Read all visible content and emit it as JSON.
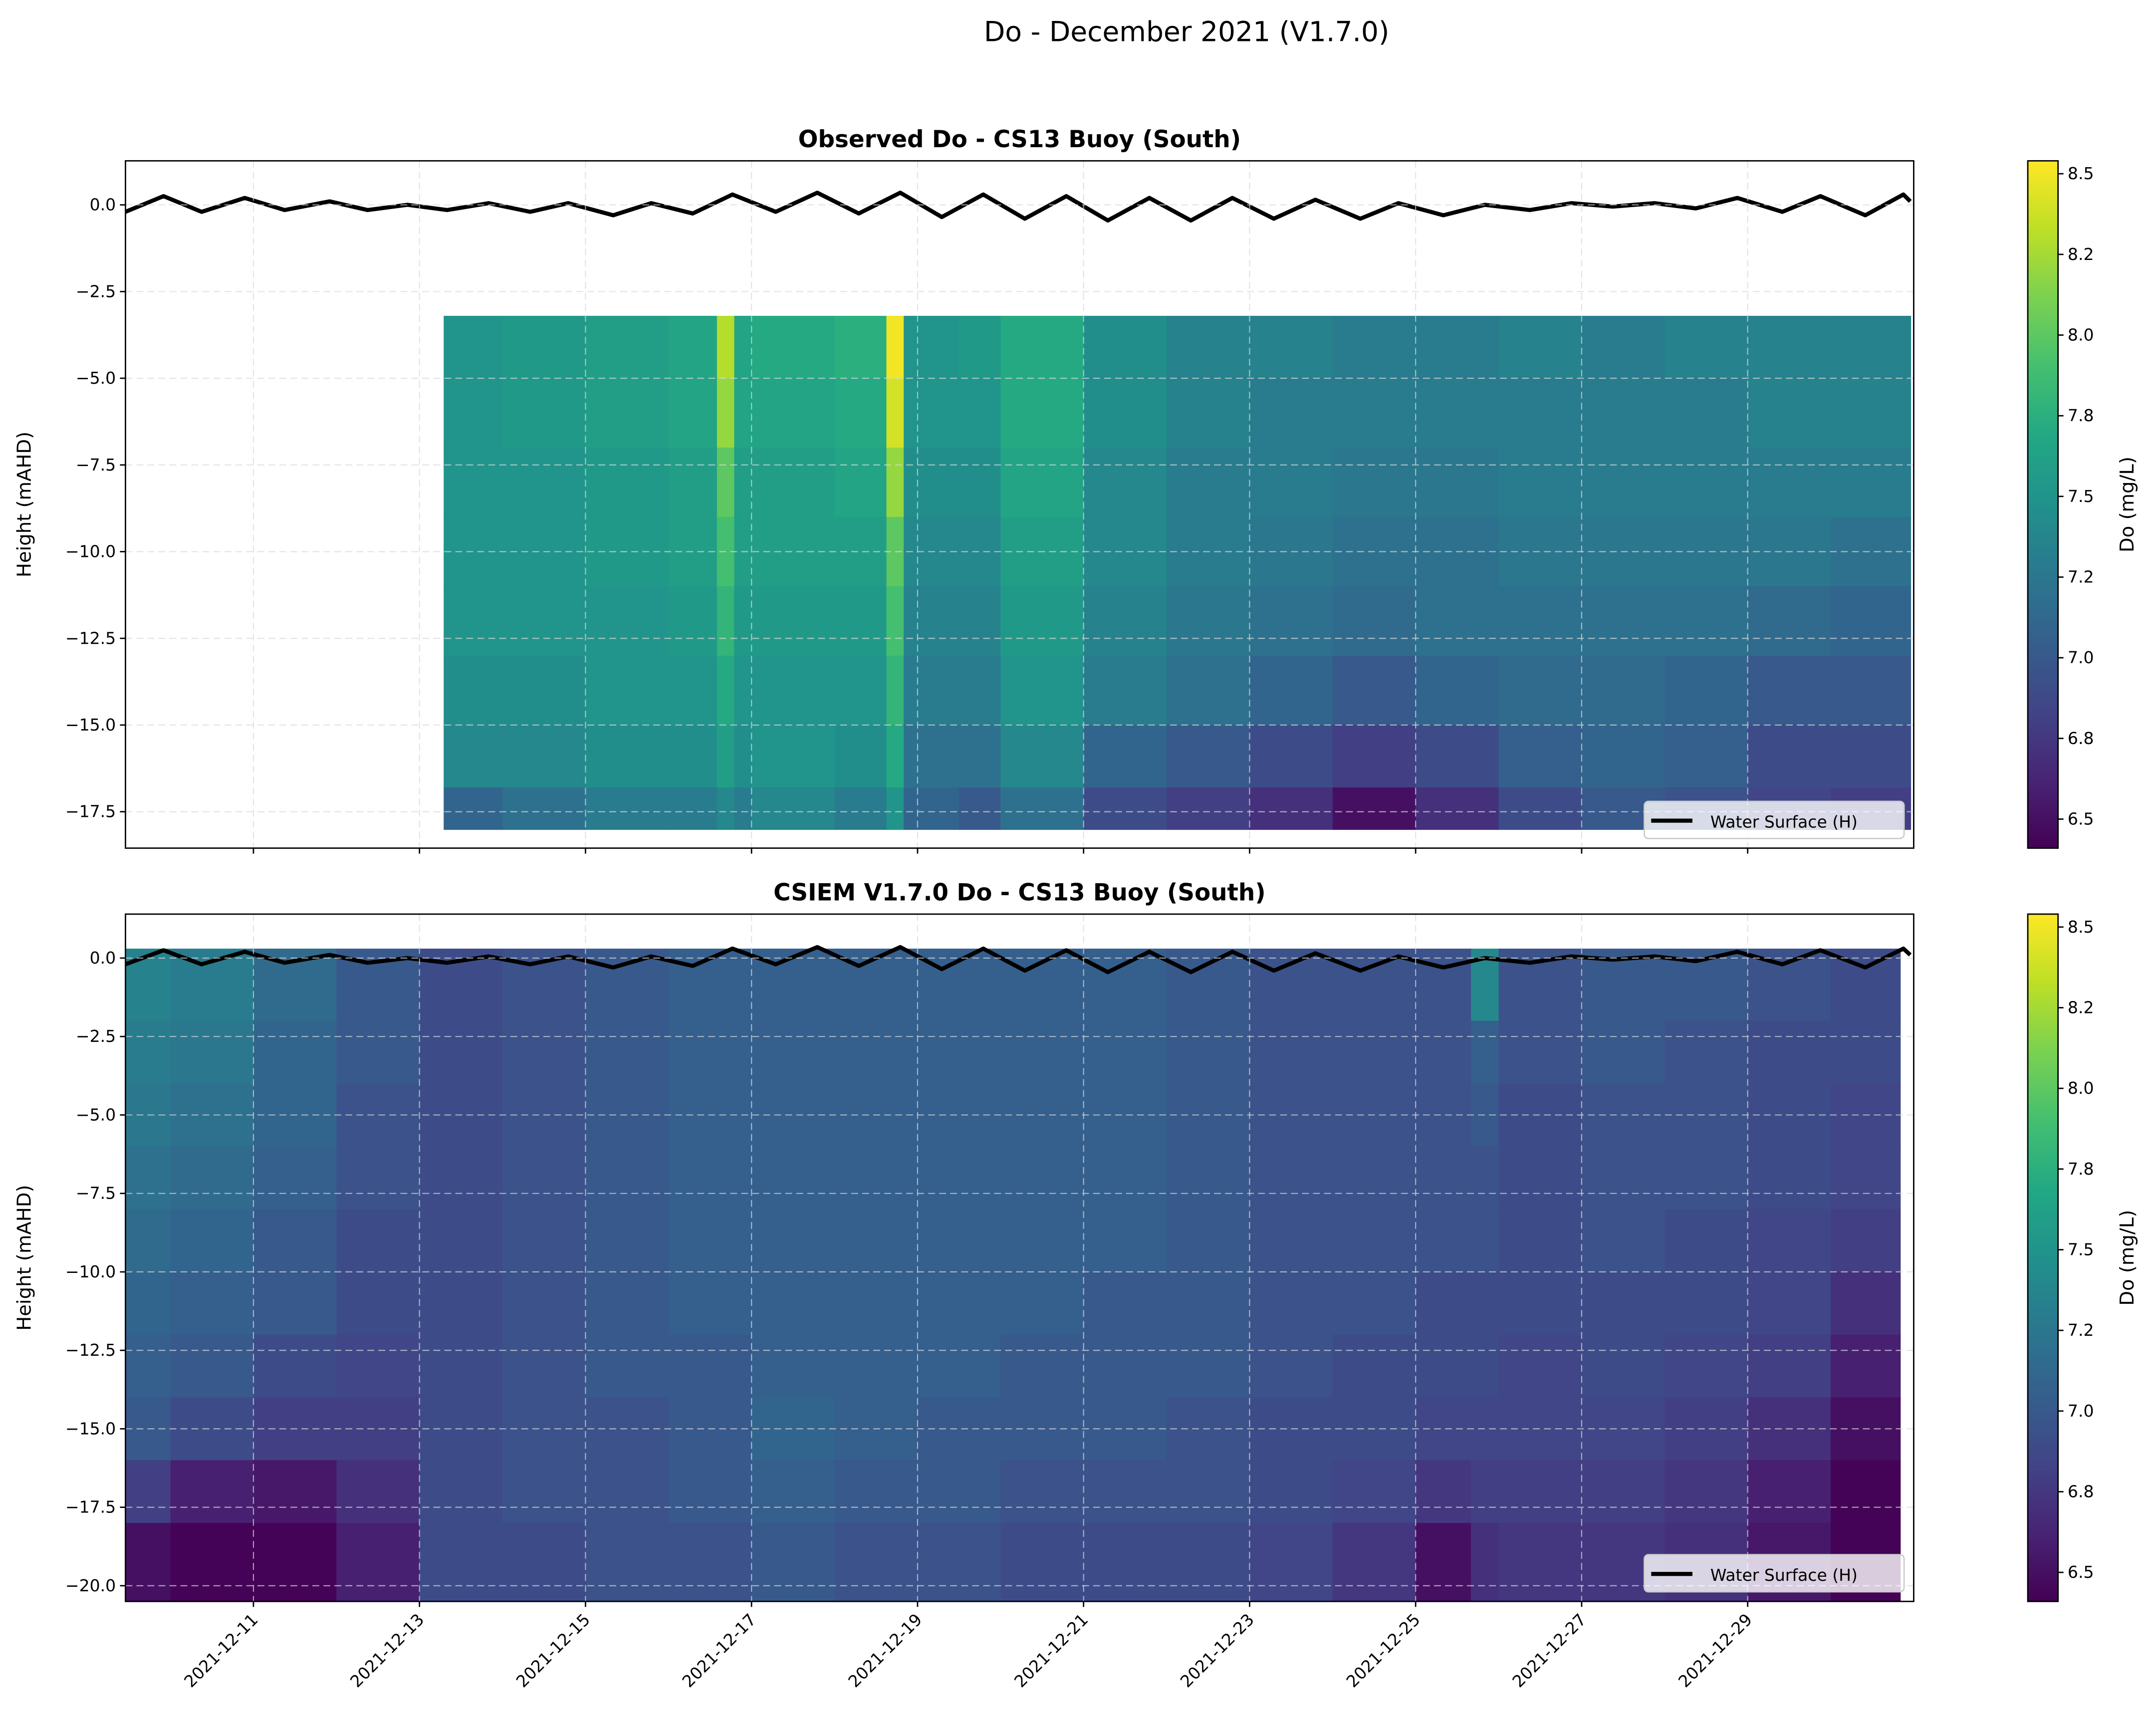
{
  "figure": {
    "title": "Do - December 2021 (V1.7.0)"
  },
  "colors": {
    "water_surface": "#000000",
    "grid": "#d9d9d9",
    "colormap": "viridis"
  },
  "chart_data": [
    {
      "type": "heatmap",
      "title": "Observed Do - CS13 Buoy (South)",
      "xlabel": "",
      "ylabel": "Height (mAHD)",
      "xlim": [
        "2021-12-09 11:00",
        "2021-12-31 00:00"
      ],
      "ylim": [
        -18.55,
        1.27
      ],
      "yticks": [
        0,
        -2.5,
        -5,
        -7.5,
        -10,
        -12.5,
        -15,
        -17.5
      ],
      "ytick_labels": [
        "0.0",
        "−2.5",
        "−5.0",
        "−7.5",
        "−10.0",
        "−12.5",
        "−15.0",
        "−17.5"
      ],
      "xticks": [
        "2021-12-11",
        "2021-12-13",
        "2021-12-15",
        "2021-12-17",
        "2021-12-19",
        "2021-12-21",
        "2021-12-23",
        "2021-12-25",
        "2021-12-27",
        "2021-12-29"
      ],
      "grid": true,
      "colorbar": {
        "label": "Do (mg/L)",
        "range": [
          6.41,
          8.54
        ],
        "ticks": [
          6.5,
          6.75,
          7.0,
          7.25,
          7.5,
          7.75,
          8.0,
          8.25,
          8.5
        ],
        "tick_labels": [
          "6.5",
          "6.8",
          "7.0",
          "7.2",
          "7.5",
          "7.8",
          "8.0",
          "8.2",
          "8.5"
        ]
      },
      "legend": {
        "entry": "Water Surface (H)",
        "placement": "lower right"
      },
      "depth_edges": [
        -3.2,
        -5,
        -7,
        -9,
        -11,
        -13,
        -15,
        -16.8,
        -18.0
      ],
      "x_end": "2021-12-30 23:00",
      "columns": [
        {
          "x": "2021-12-13 07:00",
          "values": [
            7.5,
            7.5,
            7.5,
            7.5,
            7.5,
            7.45,
            7.4,
            7.1
          ]
        },
        {
          "x": "2021-12-14 00:00",
          "values": [
            7.55,
            7.55,
            7.5,
            7.5,
            7.5,
            7.45,
            7.4,
            7.2
          ]
        },
        {
          "x": "2021-12-15 00:00",
          "values": [
            7.6,
            7.6,
            7.55,
            7.55,
            7.5,
            7.5,
            7.45,
            7.3
          ]
        },
        {
          "x": "2021-12-16 00:00",
          "values": [
            7.65,
            7.65,
            7.6,
            7.6,
            7.55,
            7.5,
            7.45,
            7.3
          ]
        },
        {
          "x": "2021-12-16 14:00",
          "values": [
            8.3,
            8.2,
            8.0,
            7.9,
            7.8,
            7.7,
            7.6,
            7.4
          ]
        },
        {
          "x": "2021-12-16 19:00",
          "values": [
            7.65,
            7.65,
            7.6,
            7.6,
            7.55,
            7.5,
            7.45,
            7.3
          ]
        },
        {
          "x": "2021-12-17 00:00",
          "values": [
            7.7,
            7.65,
            7.6,
            7.6,
            7.55,
            7.5,
            7.5,
            7.4
          ]
        },
        {
          "x": "2021-12-18 00:00",
          "values": [
            7.75,
            7.7,
            7.65,
            7.6,
            7.55,
            7.5,
            7.45,
            7.3
          ]
        },
        {
          "x": "2021-12-18 15:00",
          "values": [
            8.5,
            8.4,
            8.2,
            8.0,
            7.9,
            7.8,
            7.7,
            7.5
          ]
        },
        {
          "x": "2021-12-18 20:00",
          "values": [
            7.5,
            7.5,
            7.45,
            7.4,
            7.35,
            7.3,
            7.2,
            7.1
          ]
        },
        {
          "x": "2021-12-19 12:00",
          "values": [
            7.55,
            7.5,
            7.45,
            7.4,
            7.35,
            7.3,
            7.2,
            7.0
          ]
        },
        {
          "x": "2021-12-20 00:00",
          "values": [
            7.7,
            7.7,
            7.65,
            7.6,
            7.55,
            7.5,
            7.4,
            7.2
          ]
        },
        {
          "x": "2021-12-21 00:00",
          "values": [
            7.45,
            7.45,
            7.4,
            7.4,
            7.35,
            7.3,
            7.1,
            6.9
          ]
        },
        {
          "x": "2021-12-22 00:00",
          "values": [
            7.35,
            7.35,
            7.3,
            7.3,
            7.25,
            7.2,
            7.0,
            6.8
          ]
        },
        {
          "x": "2021-12-23 00:00",
          "values": [
            7.35,
            7.3,
            7.3,
            7.25,
            7.2,
            7.1,
            6.9,
            6.7
          ]
        },
        {
          "x": "2021-12-24 00:00",
          "values": [
            7.3,
            7.3,
            7.25,
            7.2,
            7.15,
            7.0,
            6.8,
            6.5
          ]
        },
        {
          "x": "2021-12-25 00:00",
          "values": [
            7.3,
            7.3,
            7.25,
            7.2,
            7.2,
            7.1,
            6.9,
            6.7
          ]
        },
        {
          "x": "2021-12-26 00:00",
          "values": [
            7.35,
            7.3,
            7.3,
            7.25,
            7.2,
            7.15,
            7.05,
            6.9
          ]
        },
        {
          "x": "2021-12-27 00:00",
          "values": [
            7.3,
            7.3,
            7.3,
            7.25,
            7.2,
            7.15,
            7.1,
            7.0
          ]
        },
        {
          "x": "2021-12-28 00:00",
          "values": [
            7.35,
            7.3,
            7.3,
            7.25,
            7.2,
            7.1,
            7.05,
            6.95
          ]
        },
        {
          "x": "2021-12-29 00:00",
          "values": [
            7.35,
            7.35,
            7.3,
            7.25,
            7.15,
            7.0,
            6.9,
            6.85
          ]
        },
        {
          "x": "2021-12-30 00:00",
          "values": [
            7.35,
            7.35,
            7.3,
            7.2,
            7.1,
            7.0,
            6.9,
            6.8
          ]
        }
      ]
    },
    {
      "type": "heatmap",
      "title": "CSIEM V1.7.0 Do - CS13 Buoy (South)",
      "xlabel": "",
      "ylabel": "Height (mAHD)",
      "xlim": [
        "2021-12-09 11:00",
        "2021-12-31 00:00"
      ],
      "ylim": [
        -20.5,
        1.4
      ],
      "yticks": [
        0,
        -2.5,
        -5,
        -7.5,
        -10,
        -12.5,
        -15,
        -17.5,
        -20
      ],
      "ytick_labels": [
        "0.0",
        "−2.5",
        "−5.0",
        "−7.5",
        "−10.0",
        "−12.5",
        "−15.0",
        "−17.5",
        "−20.0"
      ],
      "xticks": [
        "2021-12-11",
        "2021-12-13",
        "2021-12-15",
        "2021-12-17",
        "2021-12-19",
        "2021-12-21",
        "2021-12-23",
        "2021-12-25",
        "2021-12-27",
        "2021-12-29"
      ],
      "xtick_labels": [
        "2021-12-11",
        "2021-12-13",
        "2021-12-15",
        "2021-12-17",
        "2021-12-19",
        "2021-12-21",
        "2021-12-23",
        "2021-12-25",
        "2021-12-27",
        "2021-12-29"
      ],
      "grid": true,
      "colorbar": {
        "label": "Do (mg/L)",
        "range": [
          6.41,
          8.54
        ],
        "ticks": [
          6.5,
          6.75,
          7.0,
          7.25,
          7.5,
          7.75,
          8.0,
          8.25,
          8.5
        ],
        "tick_labels": [
          "6.5",
          "6.8",
          "7.0",
          "7.2",
          "7.5",
          "7.8",
          "8.0",
          "8.2",
          "8.5"
        ]
      },
      "legend": {
        "entry": "Water Surface (H)",
        "placement": "lower right"
      },
      "depth_edges": [
        0.3,
        -2,
        -4,
        -6,
        -8,
        -10,
        -12,
        -14,
        -16,
        -18,
        -20.5
      ],
      "x_end": "2021-12-30 20:00",
      "columns": [
        {
          "x": "2021-12-09 11:00",
          "values": [
            7.35,
            7.3,
            7.25,
            7.2,
            7.15,
            7.1,
            7.05,
            7.0,
            6.8,
            6.5
          ]
        },
        {
          "x": "2021-12-10 00:00",
          "values": [
            7.3,
            7.25,
            7.2,
            7.15,
            7.1,
            7.05,
            7.0,
            6.9,
            6.6,
            6.42
          ]
        },
        {
          "x": "2021-12-11 00:00",
          "values": [
            7.15,
            7.1,
            7.1,
            7.05,
            7.0,
            7.0,
            6.9,
            6.8,
            6.55,
            6.42
          ]
        },
        {
          "x": "2021-12-12 00:00",
          "values": [
            7.0,
            7.0,
            6.95,
            6.95,
            6.9,
            6.9,
            6.85,
            6.8,
            6.7,
            6.6
          ]
        },
        {
          "x": "2021-12-13 00:00",
          "values": [
            6.9,
            6.9,
            6.9,
            6.9,
            6.9,
            6.9,
            6.9,
            6.9,
            6.9,
            6.9
          ]
        },
        {
          "x": "2021-12-14 00:00",
          "values": [
            6.95,
            6.95,
            6.95,
            6.95,
            6.95,
            6.95,
            6.95,
            6.95,
            6.95,
            6.9
          ]
        },
        {
          "x": "2021-12-15 00:00",
          "values": [
            7.0,
            7.0,
            7.0,
            7.0,
            7.0,
            7.0,
            7.0,
            6.95,
            6.95,
            6.95
          ]
        },
        {
          "x": "2021-12-16 00:00",
          "values": [
            7.05,
            7.05,
            7.05,
            7.05,
            7.05,
            7.05,
            7.0,
            7.0,
            7.0,
            6.95
          ]
        },
        {
          "x": "2021-12-17 00:00",
          "values": [
            7.05,
            7.05,
            7.05,
            7.05,
            7.05,
            7.05,
            7.05,
            7.1,
            7.05,
            7.0
          ]
        },
        {
          "x": "2021-12-18 00:00",
          "values": [
            7.05,
            7.05,
            7.05,
            7.05,
            7.05,
            7.05,
            7.05,
            7.05,
            7.0,
            6.95
          ]
        },
        {
          "x": "2021-12-19 00:00",
          "values": [
            7.05,
            7.05,
            7.05,
            7.05,
            7.05,
            7.05,
            7.05,
            7.0,
            7.0,
            6.95
          ]
        },
        {
          "x": "2021-12-20 00:00",
          "values": [
            7.05,
            7.05,
            7.05,
            7.05,
            7.05,
            7.05,
            7.0,
            7.0,
            6.95,
            6.9
          ]
        },
        {
          "x": "2021-12-21 00:00",
          "values": [
            7.05,
            7.05,
            7.05,
            7.05,
            7.05,
            7.0,
            7.0,
            7.0,
            6.95,
            6.9
          ]
        },
        {
          "x": "2021-12-22 00:00",
          "values": [
            7.0,
            7.0,
            7.0,
            7.0,
            7.0,
            7.0,
            7.0,
            6.95,
            6.95,
            6.9
          ]
        },
        {
          "x": "2021-12-23 00:00",
          "values": [
            6.95,
            6.95,
            6.95,
            6.95,
            6.95,
            6.95,
            6.95,
            6.9,
            6.9,
            6.85
          ]
        },
        {
          "x": "2021-12-24 00:00",
          "values": [
            6.95,
            6.95,
            6.95,
            6.95,
            6.95,
            6.95,
            6.9,
            6.9,
            6.85,
            6.75
          ]
        },
        {
          "x": "2021-12-25 00:00",
          "values": [
            6.95,
            6.95,
            6.95,
            6.95,
            6.95,
            6.9,
            6.9,
            6.85,
            6.75,
            6.5
          ]
        },
        {
          "x": "2021-12-25 16:00",
          "values": [
            7.4,
            7.05,
            7.0,
            6.95,
            6.95,
            6.9,
            6.9,
            6.85,
            6.8,
            6.7
          ]
        },
        {
          "x": "2021-12-26 00:00",
          "values": [
            6.95,
            6.95,
            6.9,
            6.9,
            6.9,
            6.9,
            6.85,
            6.85,
            6.8,
            6.75
          ]
        },
        {
          "x": "2021-12-27 00:00",
          "values": [
            7.0,
            7.0,
            6.95,
            6.95,
            6.95,
            6.9,
            6.9,
            6.85,
            6.8,
            6.75
          ]
        },
        {
          "x": "2021-12-28 00:00",
          "values": [
            7.0,
            6.95,
            6.95,
            6.95,
            6.9,
            6.9,
            6.85,
            6.8,
            6.75,
            6.7
          ]
        },
        {
          "x": "2021-12-29 00:00",
          "values": [
            6.95,
            6.9,
            6.9,
            6.9,
            6.85,
            6.85,
            6.8,
            6.7,
            6.6,
            6.55
          ]
        },
        {
          "x": "2021-12-30 00:00",
          "values": [
            6.9,
            6.9,
            6.85,
            6.85,
            6.8,
            6.7,
            6.6,
            6.5,
            6.42,
            6.42
          ]
        }
      ]
    }
  ],
  "water_surface": {
    "name": "Water Surface (H)",
    "points": [
      [
        "2021-12-09 11:00",
        -0.2
      ],
      [
        "2021-12-09 22:00",
        0.25
      ],
      [
        "2021-12-10 09:00",
        -0.2
      ],
      [
        "2021-12-10 21:30",
        0.2
      ],
      [
        "2021-12-11 09:00",
        -0.15
      ],
      [
        "2021-12-11 22:00",
        0.1
      ],
      [
        "2021-12-12 09:00",
        -0.15
      ],
      [
        "2021-12-12 20:30",
        0.0
      ],
      [
        "2021-12-13 08:00",
        -0.15
      ],
      [
        "2021-12-13 20:00",
        0.05
      ],
      [
        "2021-12-14 08:00",
        -0.2
      ],
      [
        "2021-12-14 19:00",
        0.05
      ],
      [
        "2021-12-15 08:00",
        -0.3
      ],
      [
        "2021-12-15 19:00",
        0.05
      ],
      [
        "2021-12-16 07:00",
        -0.25
      ],
      [
        "2021-12-16 18:30",
        0.3
      ],
      [
        "2021-12-17 07:00",
        -0.2
      ],
      [
        "2021-12-17 19:00",
        0.35
      ],
      [
        "2021-12-18 07:00",
        -0.25
      ],
      [
        "2021-12-18 19:00",
        0.35
      ],
      [
        "2021-12-19 07:00",
        -0.35
      ],
      [
        "2021-12-19 19:00",
        0.3
      ],
      [
        "2021-12-20 07:00",
        -0.4
      ],
      [
        "2021-12-20 19:00",
        0.25
      ],
      [
        "2021-12-21 07:00",
        -0.45
      ],
      [
        "2021-12-21 19:00",
        0.2
      ],
      [
        "2021-12-22 07:00",
        -0.45
      ],
      [
        "2021-12-22 19:00",
        0.2
      ],
      [
        "2021-12-23 07:00",
        -0.4
      ],
      [
        "2021-12-23 19:00",
        0.15
      ],
      [
        "2021-12-24 08:00",
        -0.4
      ],
      [
        "2021-12-24 19:00",
        0.05
      ],
      [
        "2021-12-25 08:00",
        -0.3
      ],
      [
        "2021-12-25 20:00",
        0.0
      ],
      [
        "2021-12-26 09:00",
        -0.15
      ],
      [
        "2021-12-26 21:00",
        0.05
      ],
      [
        "2021-12-27 09:00",
        -0.05
      ],
      [
        "2021-12-27 21:00",
        0.05
      ],
      [
        "2021-12-28 09:00",
        -0.1
      ],
      [
        "2021-12-28 21:00",
        0.2
      ],
      [
        "2021-12-29 10:00",
        -0.2
      ],
      [
        "2021-12-29 21:00",
        0.25
      ],
      [
        "2021-12-30 10:00",
        -0.3
      ],
      [
        "2021-12-30 21:00",
        0.3
      ],
      [
        "2021-12-30 23:00",
        0.1
      ]
    ]
  }
}
